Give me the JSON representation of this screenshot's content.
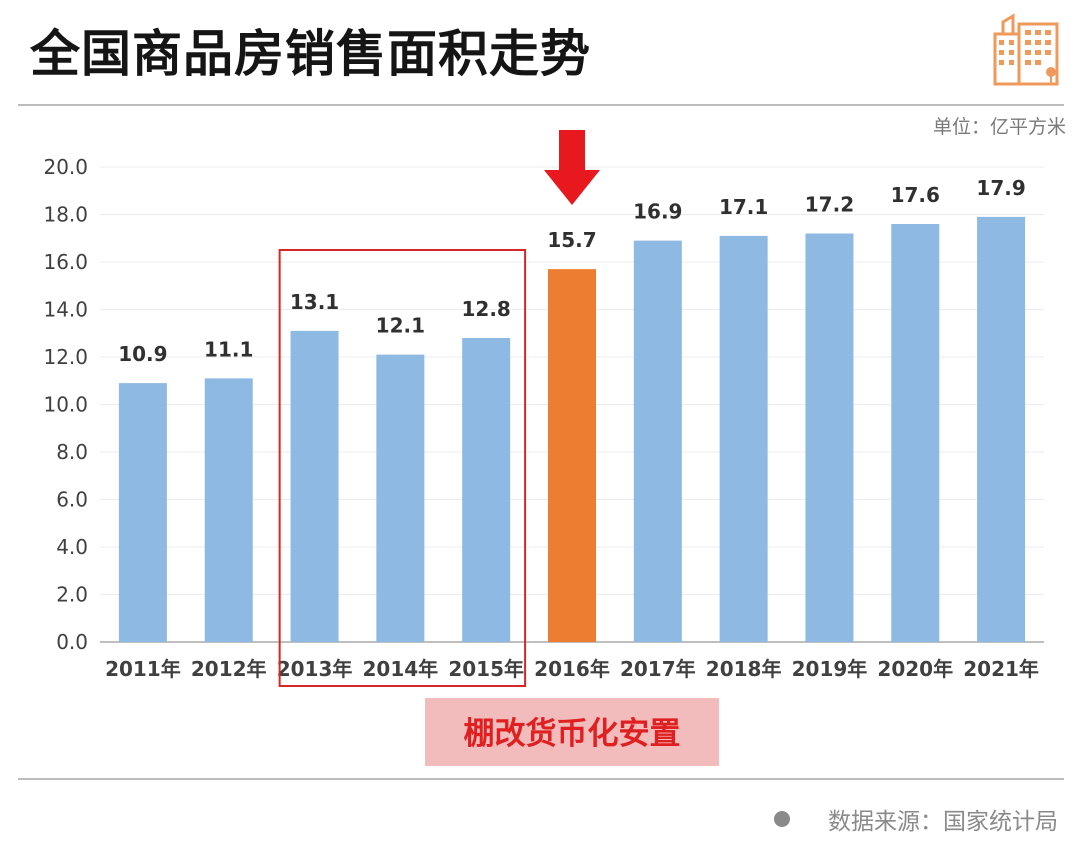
{
  "header": {
    "title": "全国商品房销售面积走势"
  },
  "unit_label": "单位：亿平方米",
  "annotation": {
    "label": "棚改货币化安置",
    "box_years": [
      "2013年",
      "2014年",
      "2015年"
    ],
    "highlight_year": "2016年"
  },
  "source": {
    "text": "数据来源：国家统计局"
  },
  "colors": {
    "bar": "#8db9e2",
    "highlight": "#ed7d31",
    "arrow": "#e8181f",
    "box": "#d62728",
    "label_bg": "#f2bcbc",
    "label_text": "#e02020",
    "logo": "#ef9a5a"
  },
  "chart_data": {
    "type": "bar",
    "categories": [
      "2011年",
      "2012年",
      "2013年",
      "2014年",
      "2015年",
      "2016年",
      "2017年",
      "2018年",
      "2019年",
      "2020年",
      "2021年"
    ],
    "values": [
      10.9,
      11.1,
      13.1,
      12.1,
      12.8,
      15.7,
      16.9,
      17.1,
      17.2,
      17.6,
      17.9
    ],
    "data_labels": [
      "10.9",
      "11.1",
      "13.1",
      "12.1",
      "12.8",
      "15.7",
      "16.9",
      "17.1",
      "17.2",
      "17.6",
      "17.9"
    ],
    "y_ticks": [
      "0.0",
      "2.0",
      "4.0",
      "6.0",
      "8.0",
      "10.0",
      "12.0",
      "14.0",
      "16.0",
      "18.0",
      "20.0"
    ],
    "ylim": [
      0,
      20
    ],
    "highlight_index": 5,
    "grid": true,
    "legend": "none",
    "title": "全国商品房销售面积走势",
    "xlabel": "",
    "ylabel": ""
  }
}
